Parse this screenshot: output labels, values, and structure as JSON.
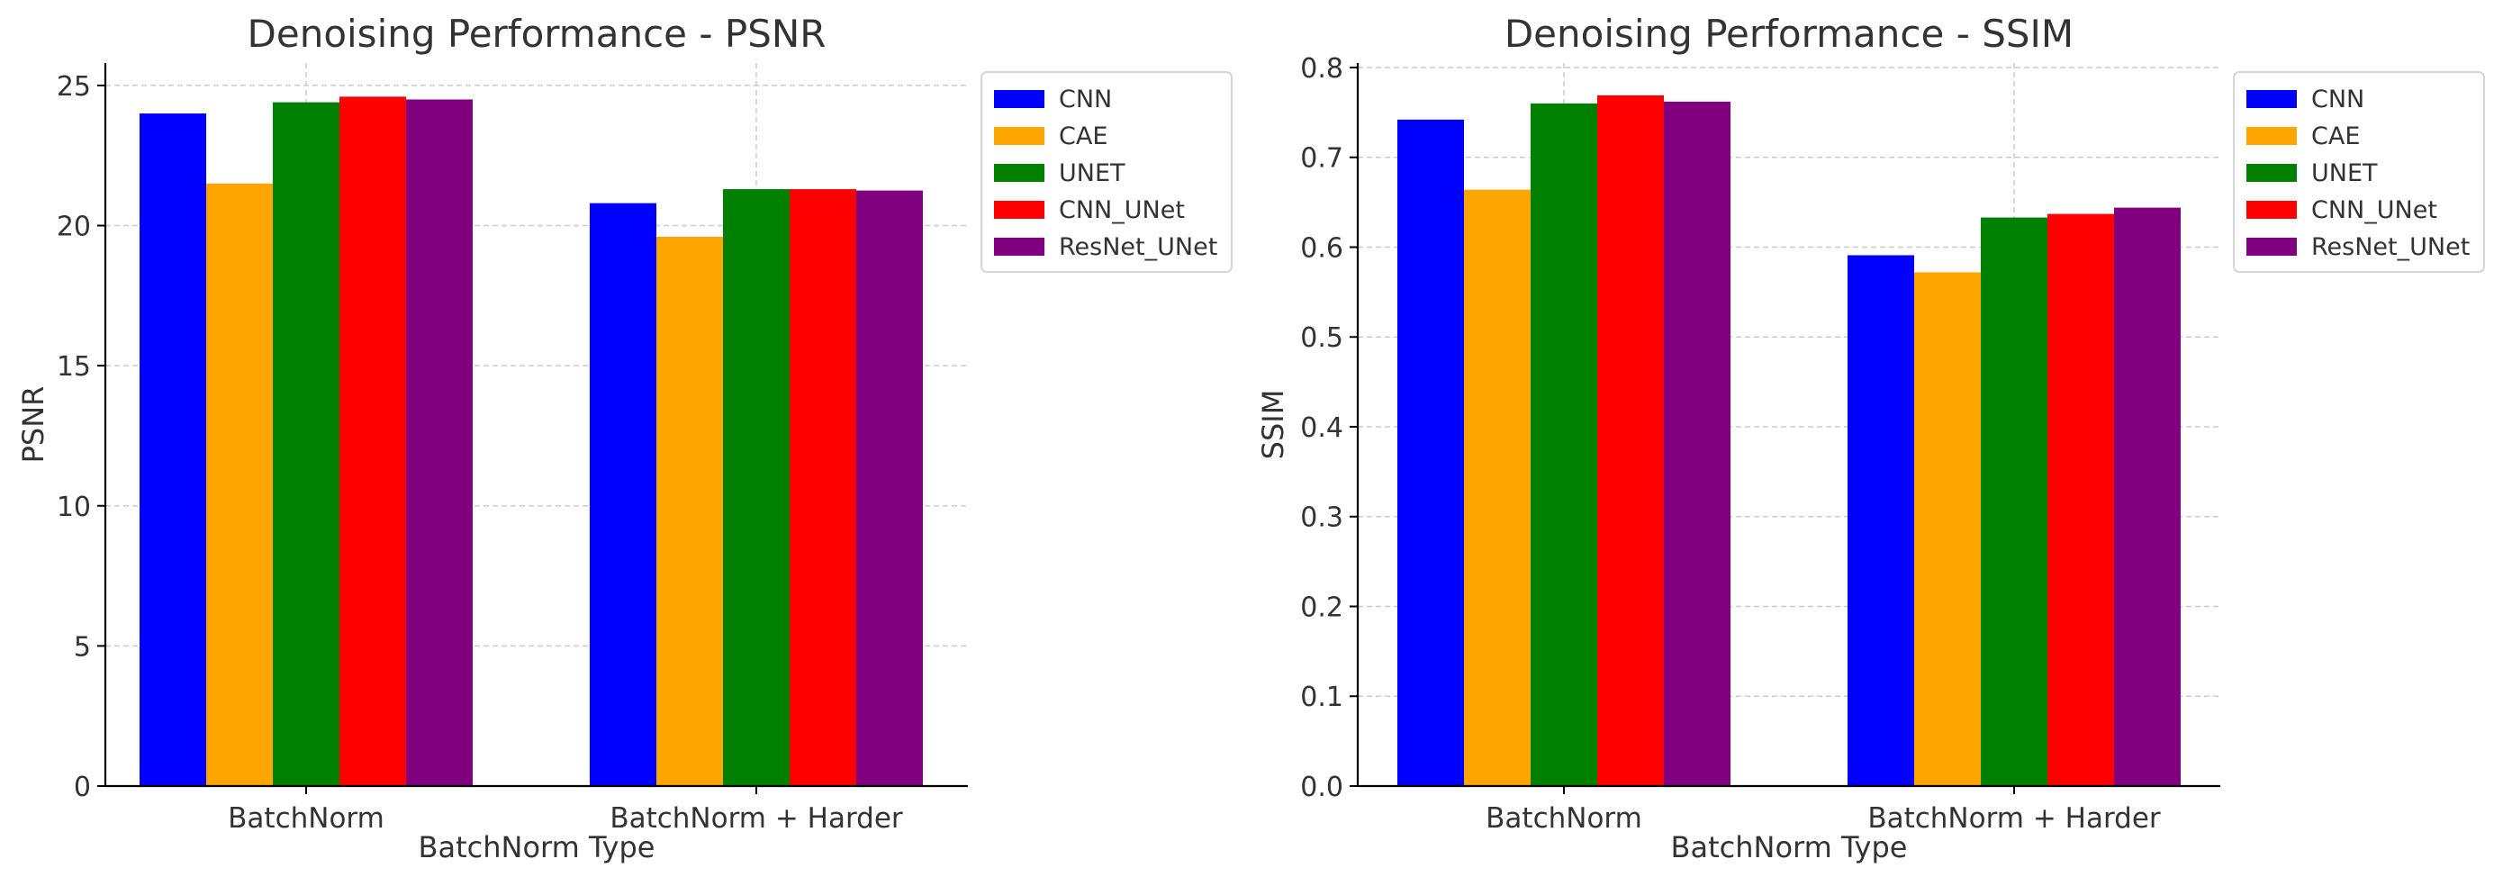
{
  "chart_data": [
    {
      "type": "bar",
      "title": "Denoising Performance - PSNR",
      "xlabel": "BatchNorm Type",
      "ylabel": "PSNR",
      "categories": [
        "BatchNorm",
        "BatchNorm + Harder"
      ],
      "series": [
        {
          "name": "CNN",
          "values": [
            24.0,
            20.8
          ],
          "color": "#0000ff"
        },
        {
          "name": "CAE",
          "values": [
            21.5,
            19.6
          ],
          "color": "#ffa500"
        },
        {
          "name": "UNET",
          "values": [
            24.4,
            21.3
          ],
          "color": "#008000"
        },
        {
          "name": "CNN_UNet",
          "values": [
            24.6,
            21.3
          ],
          "color": "#ff0000"
        },
        {
          "name": "ResNet_UNet",
          "values": [
            24.5,
            21.25
          ],
          "color": "#800080"
        }
      ],
      "ylim": [
        0,
        25.8
      ],
      "yticks": [
        0,
        5,
        10,
        15,
        20,
        25
      ],
      "ytick_labels": [
        "0",
        "5",
        "10",
        "15",
        "20",
        "25"
      ],
      "grid": true,
      "legend_position": "outside right, top"
    },
    {
      "type": "bar",
      "title": "Denoising Performance - SSIM",
      "xlabel": "BatchNorm Type",
      "ylabel": "SSIM",
      "categories": [
        "BatchNorm",
        "BatchNorm + Harder"
      ],
      "series": [
        {
          "name": "CNN",
          "values": [
            0.742,
            0.591
          ],
          "color": "#0000ff"
        },
        {
          "name": "CAE",
          "values": [
            0.664,
            0.572
          ],
          "color": "#ffa500"
        },
        {
          "name": "UNET",
          "values": [
            0.76,
            0.633
          ],
          "color": "#008000"
        },
        {
          "name": "CNN_UNet",
          "values": [
            0.769,
            0.637
          ],
          "color": "#ff0000"
        },
        {
          "name": "ResNet_UNet",
          "values": [
            0.762,
            0.644
          ],
          "color": "#800080"
        }
      ],
      "ylim": [
        0,
        0.805
      ],
      "yticks": [
        0,
        0.1,
        0.2,
        0.3,
        0.4,
        0.5,
        0.6,
        0.7,
        0.8
      ],
      "ytick_labels": [
        "0.0",
        "0.1",
        "0.2",
        "0.3",
        "0.4",
        "0.5",
        "0.6",
        "0.7",
        "0.8"
      ],
      "grid": true,
      "legend_position": "outside right, top"
    }
  ]
}
